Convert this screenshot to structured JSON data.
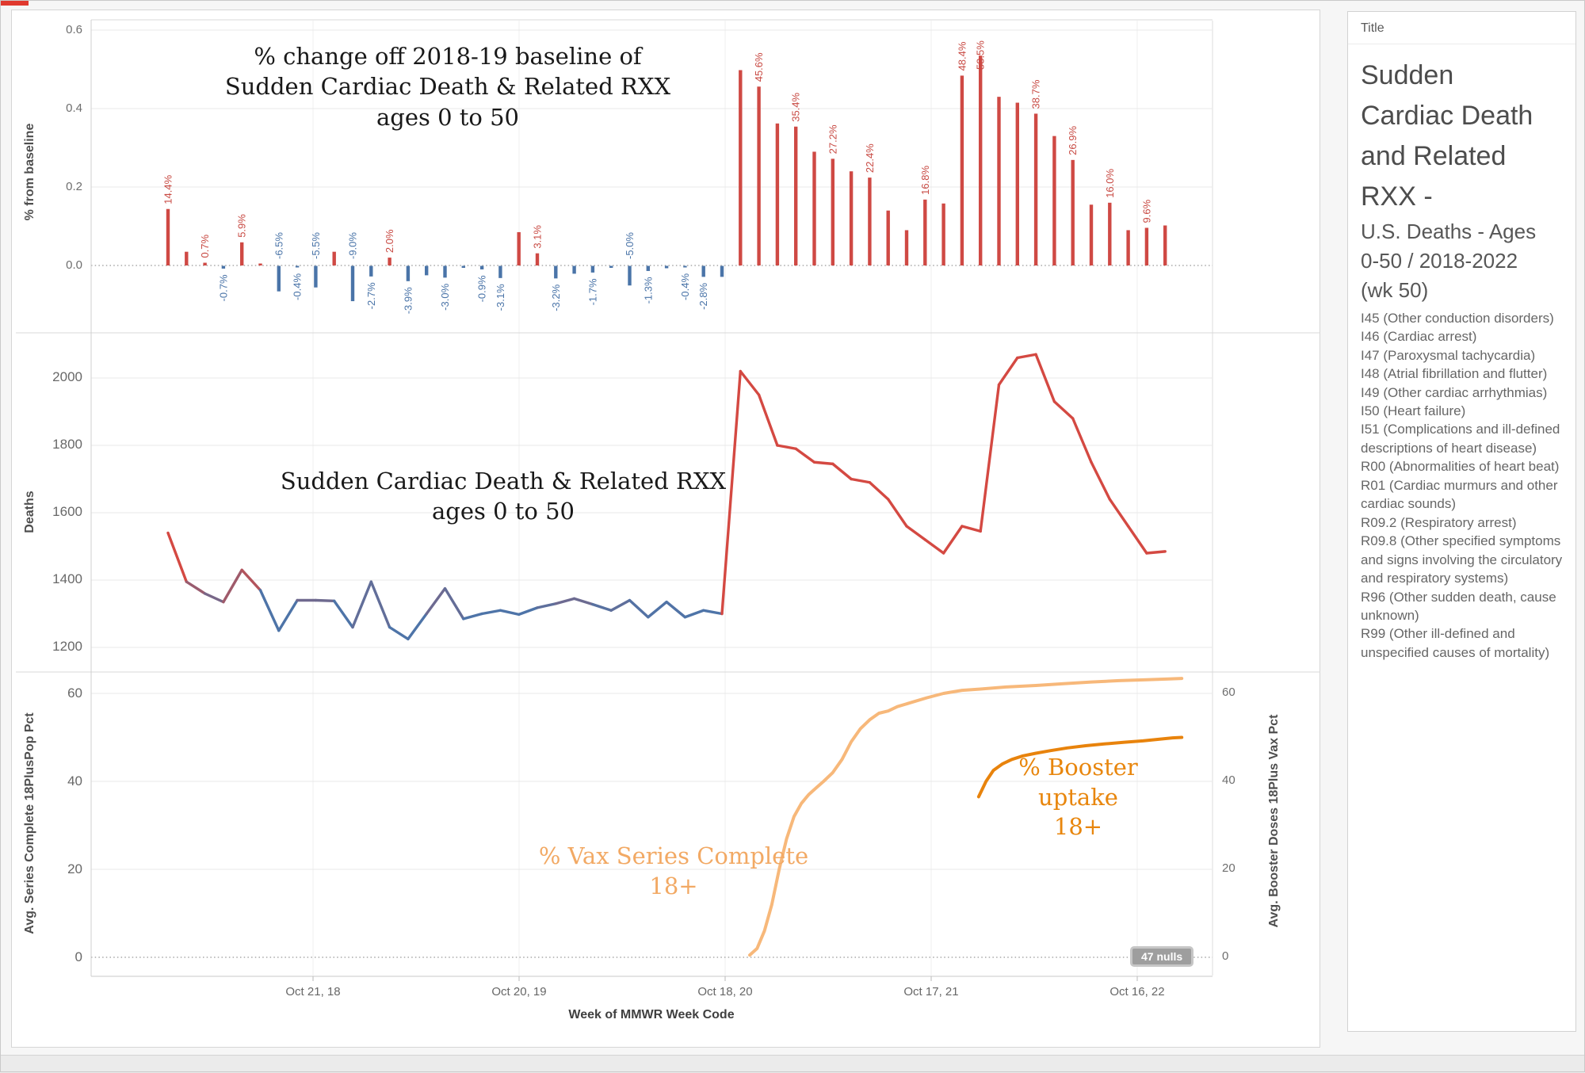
{
  "colors": {
    "bar_positive": "#cf4944",
    "bar_negative": "#4a74a8",
    "label_red": "#c84a43",
    "label_blue": "#4a74a8",
    "line_red": "#d44942",
    "line_blue": "#4e79a7",
    "vax_series": "#f7b87a",
    "booster": "#e8830c",
    "vax_label_text": "#f2a964",
    "booster_label_text": "#e8860d"
  },
  "annotations": {
    "baseline_title": "% change off 2018-19 baseline of\nSudden Cardiac Death & Related RXX\nages 0 to 50",
    "deaths_title": "Sudden Cardiac Death & Related RXX\nages 0 to 50",
    "vax_label": "% Vax Series Complete\n18+",
    "booster_label": "% Booster\nuptake\n18+",
    "nulls_badge": "47 nulls"
  },
  "x_axis": {
    "label": "Week of MMWR Week Code",
    "ticks": [
      "Oct 21, 18",
      "Oct 20, 19",
      "Oct 18, 20",
      "Oct 17, 21",
      "Oct 16, 22"
    ]
  },
  "sidebar": {
    "header": "Title",
    "title_main": "Sudden\nCardiac Death\nand Related\nRXX -",
    "title_sub": "U.S. Deaths - Ages\n0-50 / 2018-2022\n(wk 50)",
    "codes": [
      "I45 (Other conduction disorders)",
      "I46 (Cardiac arrest)",
      "I47 (Paroxysmal tachycardia)",
      "I48 (Atrial fibrillation and flutter)",
      "I49 (Other cardiac arrhythmias)",
      "I50 (Heart failure)",
      "I51 (Complications and ill-defined descriptions of heart disease)",
      "R00 (Abnormalities of heart beat)",
      "R01 (Cardiac murmurs and other cardiac sounds)",
      "R09.2 (Respiratory arrest)",
      "R09.8 (Other specified symptoms and signs involving the circulatory and respiratory systems)",
      "R96 (Other sudden death, cause unknown)",
      "R99 (Other ill-defined and unspecified causes of mortality)"
    ]
  },
  "chart_data": [
    {
      "type": "bar",
      "title": "% change off 2018-19 baseline of Sudden Cardiac Death & Related RXX ages 0 to 50",
      "ylabel": "% from baseline",
      "yticks": [
        0.0,
        0.2,
        0.4,
        0.6
      ],
      "ytick_labels": [
        "0.6",
        "0.4",
        "0.2",
        "0.0"
      ],
      "ylim": [
        -0.13,
        0.62
      ],
      "unit": "percent change vs 2018-19 baseline",
      "values": [
        14.4,
        3.5,
        0.7,
        -0.7,
        5.9,
        0.5,
        -6.5,
        -0.4,
        -5.5,
        3.5,
        -9.0,
        -2.7,
        2.0,
        -3.9,
        -2.4,
        -3.0,
        -0.5,
        -0.9,
        -3.1,
        8.5,
        3.1,
        -3.2,
        -2.0,
        -1.7,
        -0.5,
        -5.0,
        -1.3,
        -0.6,
        -0.4,
        -2.8,
        -2.8,
        49.8,
        45.6,
        36.2,
        35.4,
        29.0,
        27.2,
        24.0,
        22.4,
        14.0,
        9.0,
        16.8,
        15.8,
        48.4,
        53.5,
        43.0,
        41.5,
        38.7,
        33.0,
        26.9,
        15.5,
        16.0,
        9.0,
        9.6,
        10.2
      ],
      "labels": [
        "14.4%",
        null,
        "0.7%",
        "-0.7%",
        "5.9%",
        null,
        "-6.5%",
        "-0.4%",
        "-5.5%",
        null,
        "-9.0%",
        "-2.7%",
        "2.0%",
        "-3.9%",
        null,
        "-3.0%",
        null,
        "-0.9%",
        "-3.1%",
        null,
        "3.1%",
        "-3.2%",
        null,
        "-1.7%",
        null,
        "-5.0%",
        "-1.3%",
        null,
        "-0.4%",
        "-2.8%",
        null,
        null,
        "45.6%",
        null,
        "35.4%",
        null,
        "27.2%",
        null,
        "22.4%",
        null,
        null,
        "16.8%",
        null,
        "48.4%",
        "53.5%",
        null,
        null,
        "38.7%",
        null,
        "26.9%",
        null,
        "16.0%",
        null,
        "9.6%",
        null
      ]
    },
    {
      "type": "line",
      "title": "Sudden Cardiac Death & Related RXX ages 0 to 50",
      "ylabel": "Deaths",
      "yticks": [
        1200,
        1400,
        1600,
        1800,
        2000
      ],
      "ytick_labels": [
        "2000",
        "1800",
        "1600",
        "1400",
        "1200"
      ],
      "ylim": [
        1150,
        2120
      ],
      "values": [
        1540,
        1395,
        1360,
        1335,
        1430,
        1370,
        1250,
        1340,
        1340,
        1338,
        1260,
        1395,
        1260,
        1225,
        1300,
        1375,
        1285,
        1300,
        1310,
        1298,
        1318,
        1330,
        1345,
        1328,
        1310,
        1340,
        1290,
        1335,
        1290,
        1310,
        1300,
        2020,
        1950,
        1800,
        1790,
        1750,
        1745,
        1700,
        1690,
        1640,
        1560,
        1520,
        1480,
        1560,
        1545,
        1980,
        2060,
        2070,
        1930,
        1880,
        1750,
        1640,
        1560,
        1480,
        1485
      ],
      "color_note": "blue near baseline, red when elevated"
    },
    {
      "type": "line",
      "ylabel_left": "Avg. Series Complete 18PlusPop Pct",
      "ylabel_right": "Avg. Booster Doses 18Plus Vax Pct",
      "yticks": [
        0,
        20,
        40,
        60
      ],
      "ytick_labels_left": [
        "60",
        "40",
        "20",
        "0"
      ],
      "ytick_labels_right": [
        "60",
        "40",
        "20",
        "0"
      ],
      "ylim": [
        0,
        66
      ],
      "series": [
        {
          "name": "% Vax Series Complete 18+",
          "color": "#f7b87a",
          "points": [
            [
              31.5,
              0.5
            ],
            [
              31.9,
              2
            ],
            [
              32.3,
              6
            ],
            [
              32.7,
              12
            ],
            [
              33.1,
              20
            ],
            [
              33.5,
              27
            ],
            [
              33.9,
              32
            ],
            [
              34.3,
              35
            ],
            [
              34.7,
              37
            ],
            [
              35.1,
              38.5
            ],
            [
              35.5,
              40
            ],
            [
              36,
              42
            ],
            [
              36.5,
              45
            ],
            [
              37,
              49
            ],
            [
              37.5,
              52
            ],
            [
              38,
              54
            ],
            [
              38.5,
              55.5
            ],
            [
              39,
              56
            ],
            [
              39.5,
              57
            ],
            [
              40.3,
              58
            ],
            [
              41.1,
              59
            ],
            [
              42,
              60
            ],
            [
              43,
              60.7
            ],
            [
              44,
              61
            ],
            [
              45.5,
              61.5
            ],
            [
              47,
              61.8
            ],
            [
              48.5,
              62.2
            ],
            [
              50,
              62.6
            ],
            [
              51.5,
              62.9
            ],
            [
              53,
              63.1
            ],
            [
              54.2,
              63.3
            ],
            [
              54.9,
              63.4
            ]
          ]
        },
        {
          "name": "% Booster uptake 18+",
          "color": "#e8830c",
          "points": [
            [
              43.9,
              36.5
            ],
            [
              44.3,
              40
            ],
            [
              44.7,
              42.5
            ],
            [
              45.2,
              44
            ],
            [
              45.7,
              45
            ],
            [
              46.3,
              45.8
            ],
            [
              47,
              46.4
            ],
            [
              47.8,
              47
            ],
            [
              48.7,
              47.6
            ],
            [
              49.7,
              48.1
            ],
            [
              50.7,
              48.5
            ],
            [
              51.8,
              48.9
            ],
            [
              52.8,
              49.2
            ],
            [
              53.7,
              49.6
            ],
            [
              54.4,
              49.9
            ],
            [
              54.9,
              50
            ]
          ]
        }
      ],
      "nulls_note": "47 nulls"
    }
  ]
}
